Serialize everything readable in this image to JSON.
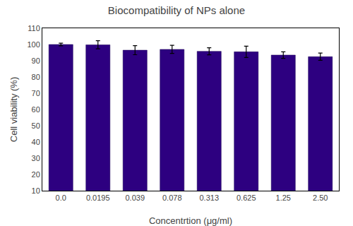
{
  "chart_data": {
    "type": "bar",
    "title": "Biocompatibility of NPs alone",
    "xlabel": "Concentrtion (μg/ml)",
    "ylabel": "Cell viability (%)",
    "categories": [
      "0.0",
      "0.0195",
      "0.039",
      "0.078",
      "0.313",
      "0.625",
      "1.25",
      "2.50"
    ],
    "values": [
      100.0,
      99.8,
      96.5,
      97.0,
      95.8,
      95.5,
      93.5,
      92.5
    ],
    "errors": [
      0.8,
      2.5,
      2.8,
      2.5,
      2.2,
      3.5,
      2.0,
      2.2
    ],
    "color": "#2d0080",
    "ylim": [
      10,
      110
    ],
    "yticks": [
      10,
      20,
      30,
      40,
      50,
      60,
      70,
      80,
      90,
      100,
      110
    ],
    "grid": false
  }
}
